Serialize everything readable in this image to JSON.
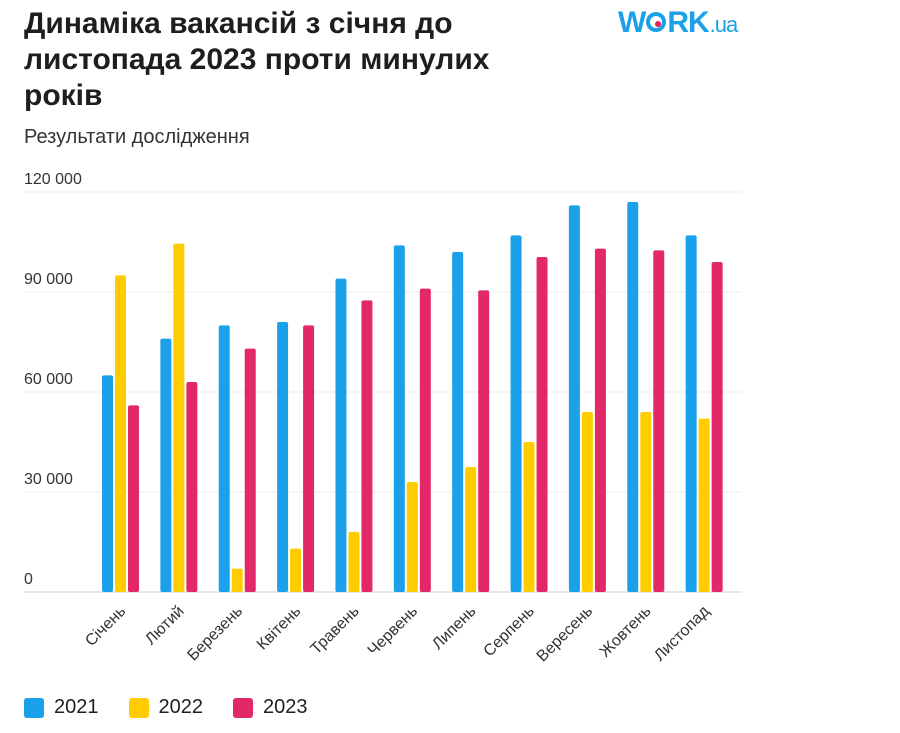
{
  "header": {
    "title": "Динаміка вакансій з січня до листопада 2023 проти минулих років",
    "subtitle": "Результати дослідження",
    "logo_main": "W",
    "logo_rk": "RK",
    "logo_ua": ".ua"
  },
  "chart_data": {
    "type": "bar",
    "categories": [
      "Січень",
      "Лютий",
      "Березень",
      "Квітень",
      "Травень",
      "Червень",
      "Липень",
      "Серпень",
      "Вересень",
      "Жовтень",
      "Листопад"
    ],
    "series": [
      {
        "name": "2021",
        "color": "#1ba0ea",
        "values": [
          65000,
          76000,
          80000,
          81000,
          94000,
          104000,
          102000,
          107000,
          116000,
          117000,
          107000
        ]
      },
      {
        "name": "2022",
        "color": "#ffcc00",
        "values": [
          95000,
          104500,
          7000,
          13000,
          18000,
          33000,
          37500,
          45000,
          54000,
          54000,
          52000
        ]
      },
      {
        "name": "2023",
        "color": "#e3286a",
        "values": [
          56000,
          63000,
          73000,
          80000,
          87500,
          91000,
          90500,
          100500,
          103000,
          102500,
          99000
        ]
      }
    ],
    "yticks": [
      "0",
      "30 000",
      "60 000",
      "90 000",
      "120 000"
    ],
    "ytick_values": [
      0,
      30000,
      60000,
      90000,
      120000
    ],
    "ylim": [
      0,
      120000
    ],
    "grid": true,
    "legend_position": "bottom-left"
  }
}
